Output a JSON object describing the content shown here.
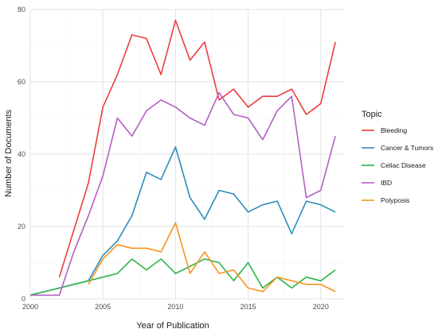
{
  "chart_data": {
    "type": "line",
    "title": "",
    "xlabel": "Year of Publication",
    "ylabel": "Number of Documents",
    "xlim": [
      2000,
      2021.6
    ],
    "ylim": [
      0,
      80
    ],
    "x_ticks": [
      2000,
      2005,
      2010,
      2015,
      2020
    ],
    "y_ticks": [
      0,
      20,
      40,
      60,
      80
    ],
    "grid": true,
    "legend_title": "Topic",
    "legend_position": "right",
    "series": [
      {
        "name": "Bleeding",
        "color": "#EF3B3F",
        "x": [
          2002,
          2003,
          2004,
          2005,
          2006,
          2007,
          2008,
          2009,
          2010,
          2011,
          2012,
          2013,
          2014,
          2015,
          2016,
          2017,
          2018,
          2019,
          2020,
          2021
        ],
        "values": [
          6,
          19,
          32,
          53,
          62,
          73,
          72,
          62,
          77,
          66,
          71,
          55,
          58,
          53,
          56,
          56,
          58,
          51,
          54,
          71
        ]
      },
      {
        "name": "Cancer & Tumors",
        "color": "#2B8CBE",
        "x": [
          2000,
          2001,
          2002,
          2003,
          2004,
          2005,
          2006,
          2007,
          2008,
          2009,
          2010,
          2011,
          2012,
          2013,
          2014,
          2015,
          2016,
          2017,
          2018,
          2019,
          2020,
          2021
        ],
        "values": [
          1,
          2,
          3,
          4,
          5,
          12,
          16,
          23,
          35,
          33,
          42,
          28,
          22,
          30,
          29,
          24,
          26,
          27,
          18,
          27,
          26,
          24
        ]
      },
      {
        "name": "Celiac Disease",
        "color": "#2DB34A",
        "x": [
          2000,
          2001,
          2002,
          2003,
          2004,
          2005,
          2006,
          2007,
          2008,
          2009,
          2010,
          2011,
          2012,
          2013,
          2014,
          2015,
          2016,
          2017,
          2018,
          2019,
          2020,
          2021
        ],
        "values": [
          1,
          2,
          3,
          4,
          5,
          6,
          7,
          11,
          8,
          11,
          7,
          9,
          11,
          10,
          5,
          10,
          3,
          6,
          3,
          6,
          5,
          8
        ]
      },
      {
        "name": "IBD",
        "color": "#B45FC4",
        "x": [
          2000,
          2001,
          2002,
          2003,
          2004,
          2005,
          2006,
          2007,
          2008,
          2009,
          2010,
          2011,
          2012,
          2013,
          2014,
          2015,
          2016,
          2017,
          2018,
          2019,
          2020,
          2021
        ],
        "values": [
          1,
          1,
          1,
          13,
          23,
          34,
          50,
          45,
          52,
          55,
          53,
          50,
          48,
          57,
          51,
          50,
          44,
          52,
          56,
          28,
          30,
          45
        ]
      },
      {
        "name": "Polyposis",
        "color": "#F7941D",
        "x": [
          2004,
          2005,
          2006,
          2007,
          2008,
          2009,
          2010,
          2011,
          2012,
          2013,
          2014,
          2015,
          2016,
          2017,
          2018,
          2019,
          2020,
          2021
        ],
        "values": [
          4,
          11,
          15,
          14,
          14,
          13,
          21,
          7,
          13,
          7,
          8,
          3,
          2,
          6,
          5,
          4,
          4,
          2
        ]
      }
    ]
  }
}
